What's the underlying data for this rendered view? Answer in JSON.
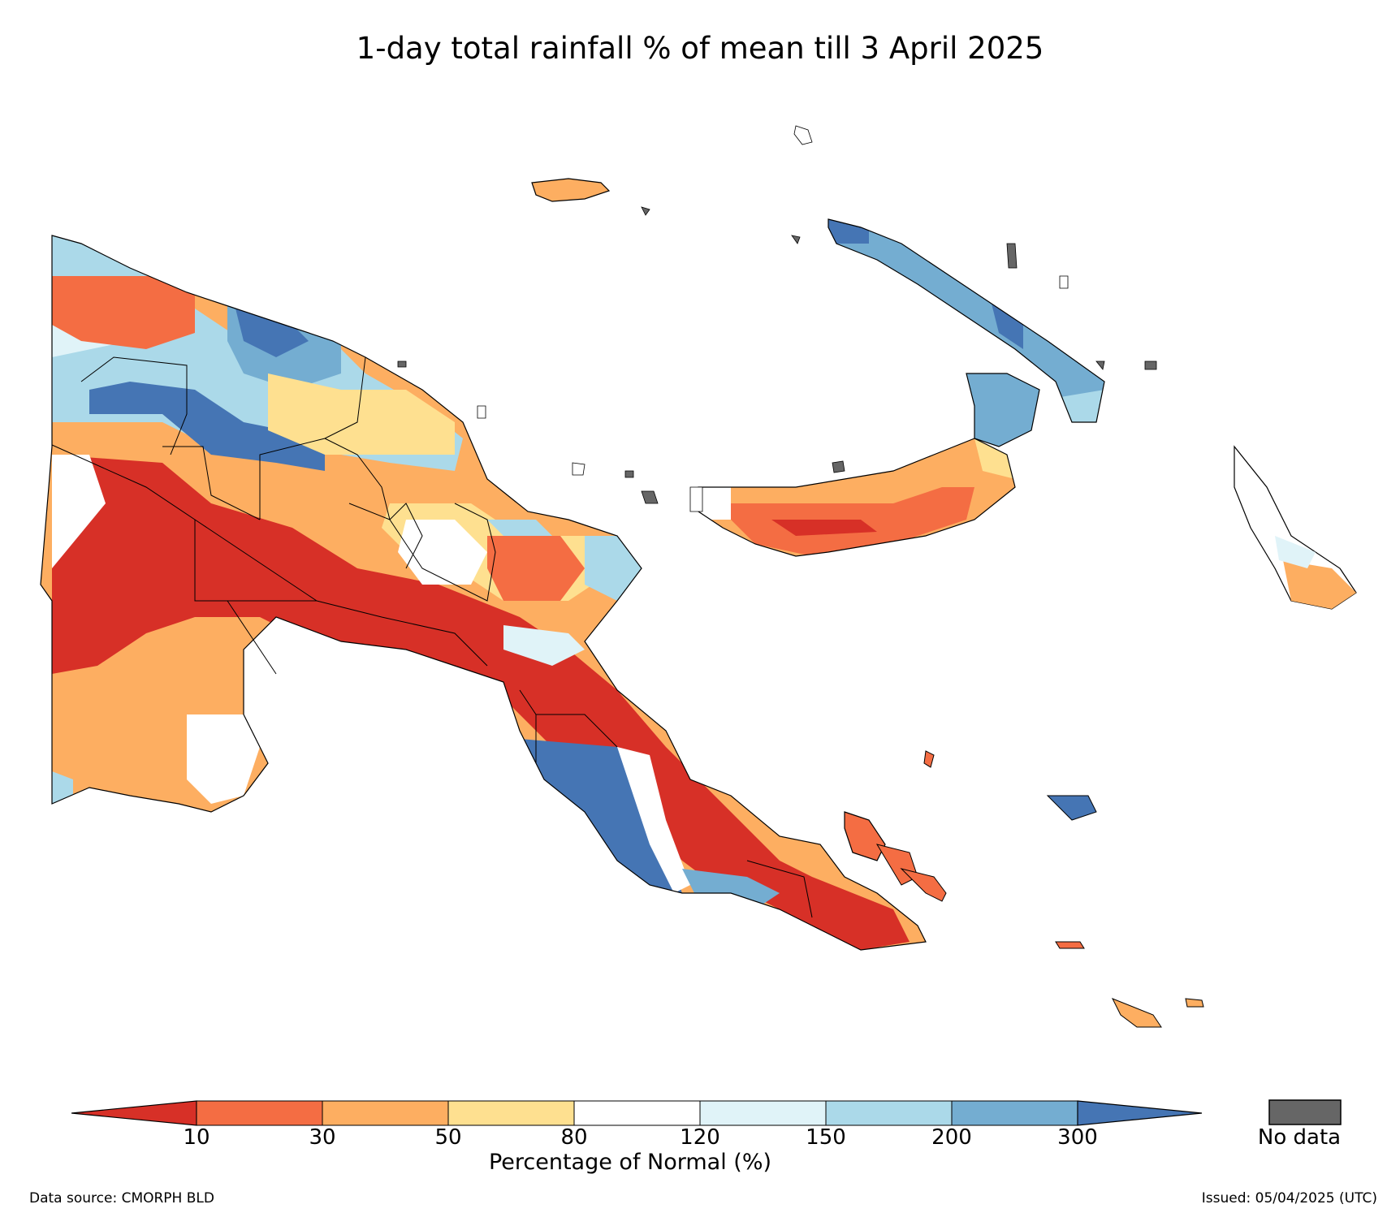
{
  "title": "1-day total rainfall % of mean till 3 April 2025",
  "legend": {
    "label": "Percentage of Normal (%)",
    "ticks": [
      "10",
      "30",
      "50",
      "80",
      "120",
      "150",
      "200",
      "300"
    ],
    "bins": [
      {
        "range": "<10",
        "color": "#d73027"
      },
      {
        "range": "10-30",
        "color": "#f46d43"
      },
      {
        "range": "30-50",
        "color": "#fdae61"
      },
      {
        "range": "50-80",
        "color": "#fee090"
      },
      {
        "range": "80-120",
        "color": "#ffffff"
      },
      {
        "range": "120-150",
        "color": "#e0f3f8"
      },
      {
        "range": "150-200",
        "color": "#abd9e9"
      },
      {
        "range": "200-300",
        "color": "#74add1"
      },
      {
        "range": ">300",
        "color": "#4575b4"
      }
    ],
    "no_data_label": "No data",
    "no_data_color": "#666666"
  },
  "footer": {
    "source": "Data source: CMORPH BLD",
    "issued": "Issued: 05/04/2025 (UTC)"
  }
}
